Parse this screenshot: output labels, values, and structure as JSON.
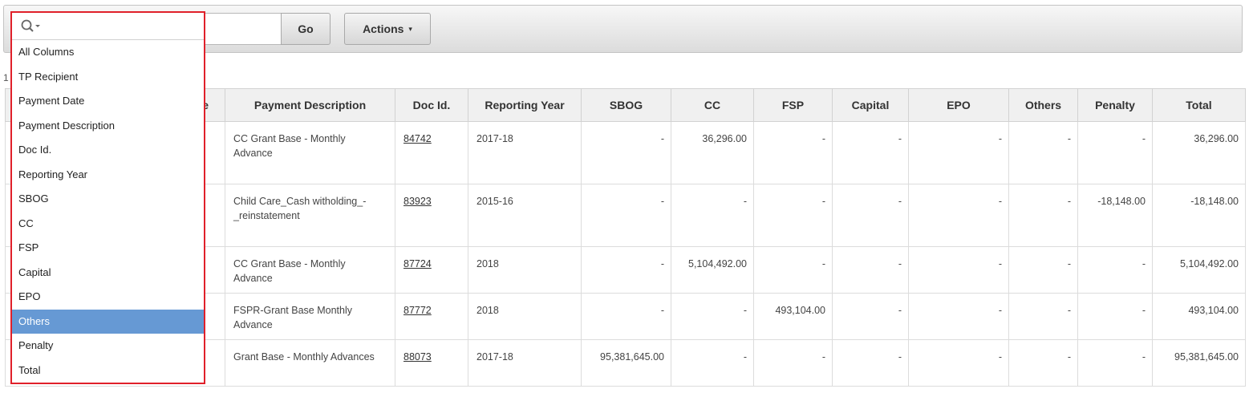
{
  "toolbar": {
    "go_label": "Go",
    "actions_label": "Actions",
    "actions_caret": "▾"
  },
  "pager_stub": "1",
  "columns_menu": {
    "items": [
      {
        "label": "All Columns",
        "selected": false
      },
      {
        "label": "TP Recipient",
        "selected": false
      },
      {
        "label": "Payment Date",
        "selected": false
      },
      {
        "label": "Payment Description",
        "selected": false
      },
      {
        "label": "Doc Id.",
        "selected": false
      },
      {
        "label": "Reporting Year",
        "selected": false
      },
      {
        "label": "SBOG",
        "selected": false
      },
      {
        "label": "CC",
        "selected": false
      },
      {
        "label": "FSP",
        "selected": false
      },
      {
        "label": "Capital",
        "selected": false
      },
      {
        "label": "EPO",
        "selected": false
      },
      {
        "label": "Others",
        "selected": true
      },
      {
        "label": "Penalty",
        "selected": false
      },
      {
        "label": "Total",
        "selected": false
      }
    ]
  },
  "table": {
    "headers": [
      "e",
      "Payment Description",
      "Doc Id.",
      "Reporting Year",
      "SBOG",
      "CC",
      "FSP",
      "Capital",
      "EPO",
      "Others",
      "Penalty",
      "Total"
    ],
    "rows": [
      {
        "date": "",
        "desc": "CC Grant Base - Monthly Advance",
        "doc": "84742",
        "year": "2017-18",
        "sbog": "-",
        "cc": "36,296.00",
        "fsp": "-",
        "capital": "-",
        "epo": "-",
        "others": "-",
        "penalty": "-",
        "total": "36,296.00"
      },
      {
        "date": "",
        "desc": "Child Care_Cash witholding_-_reinstatement",
        "doc": "83923",
        "year": "2015-16",
        "sbog": "-",
        "cc": "-",
        "fsp": "-",
        "capital": "-",
        "epo": "-",
        "others": "-",
        "penalty": "-18,148.00",
        "total": "-18,148.00"
      },
      {
        "date": "",
        "desc": "CC Grant Base - Monthly Advance",
        "doc": "87724",
        "year": "2018",
        "sbog": "-",
        "cc": "5,104,492.00",
        "fsp": "-",
        "capital": "-",
        "epo": "-",
        "others": "-",
        "penalty": "-",
        "total": "5,104,492.00"
      },
      {
        "date": "",
        "desc": "FSPR-Grant Base Monthly Advance",
        "doc": "87772",
        "year": "2018",
        "sbog": "-",
        "cc": "-",
        "fsp": "493,104.00",
        "capital": "-",
        "epo": "-",
        "others": "-",
        "penalty": "-",
        "total": "493,104.00"
      },
      {
        "date": "",
        "desc": "Grant Base - Monthly Advances",
        "doc": "88073",
        "year": "2017-18",
        "sbog": "95,381,645.00",
        "cc": "-",
        "fsp": "-",
        "capital": "-",
        "epo": "-",
        "others": "-",
        "penalty": "-",
        "total": "95,381,645.00"
      }
    ]
  },
  "colors": {
    "selected_bg": "#6699d4",
    "highlight_border": "#e0202a"
  }
}
